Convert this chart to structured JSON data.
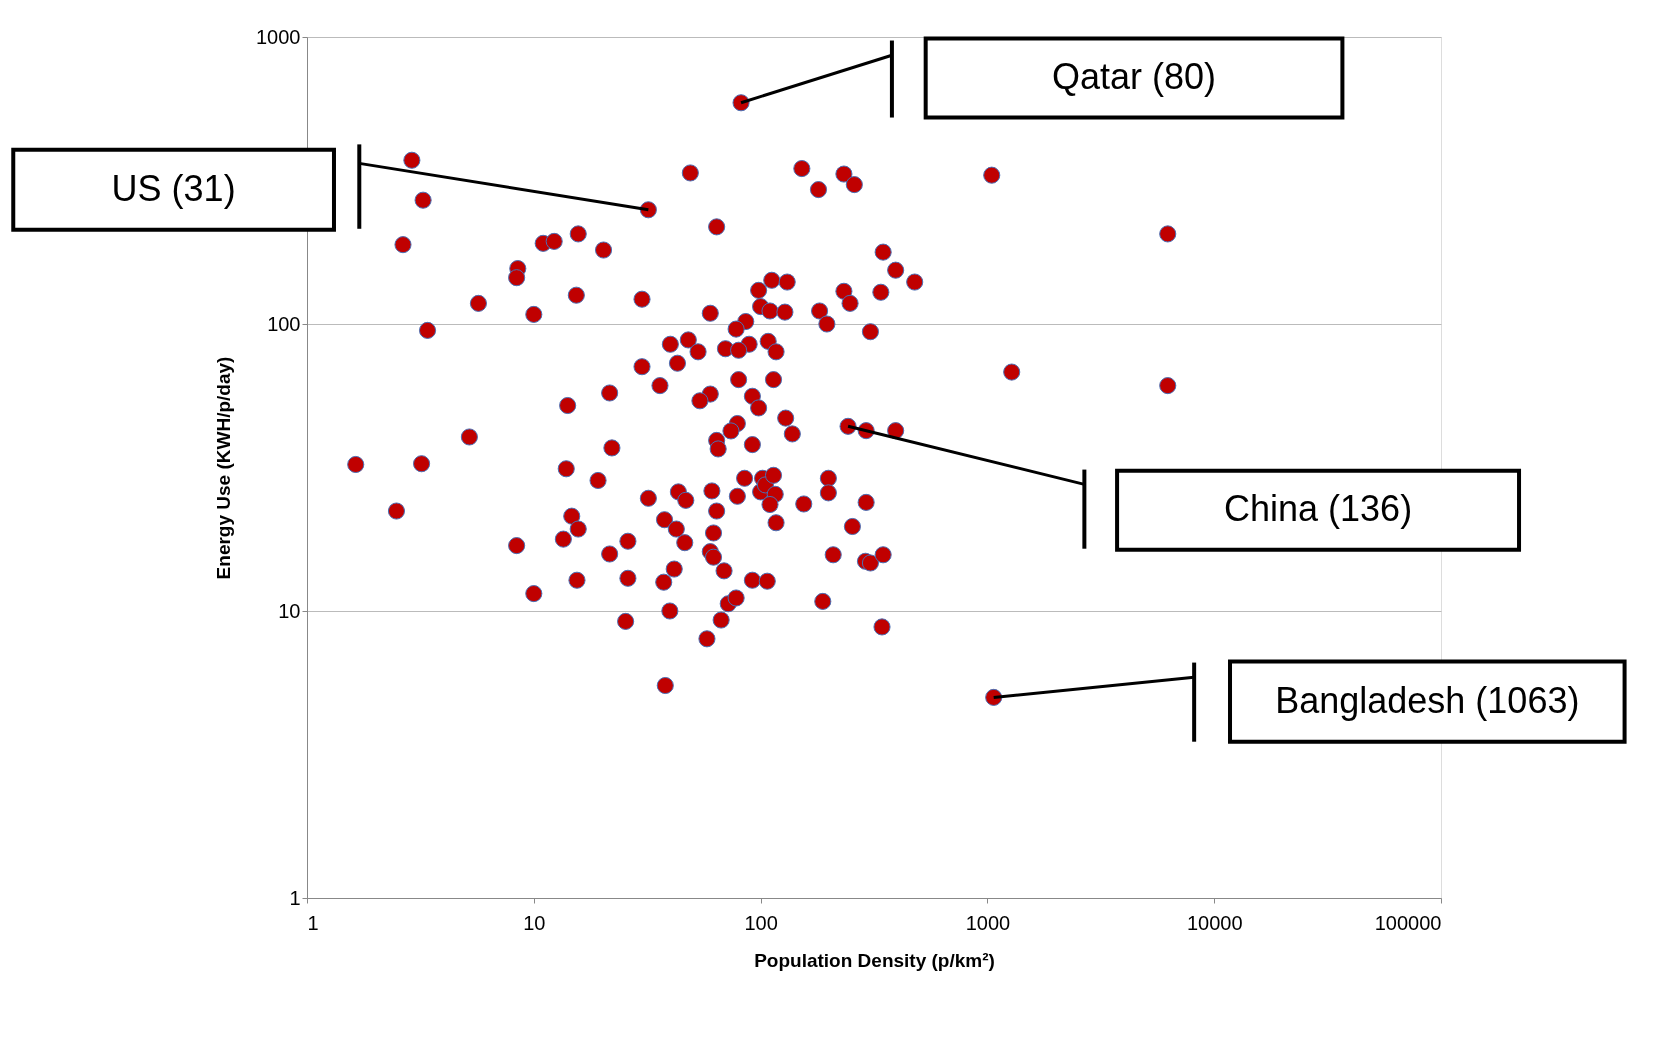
{
  "chart_data": {
    "type": "scatter",
    "xlabel": "Population Density (p/km²)",
    "ylabel": "Energy Use (KWH/p/day)",
    "log": "xy",
    "grid": "y",
    "marker": "circle",
    "xlim": [
      1,
      100000
    ],
    "ylim": [
      1,
      1000
    ],
    "xticks": [
      1,
      10,
      100,
      1000,
      10000,
      100000
    ],
    "yticks": [
      1,
      10,
      100,
      1000
    ],
    "series": [
      {
        "color": "#c00000",
        "x": [
          82,
          2.9,
          3.25,
          2.65,
          32,
          49,
          152,
          233,
          259,
          180,
          1045,
          6240,
          64,
          11,
          12.3,
          15.7,
          20.3,
          8.5,
          8.4,
          5.7,
          10,
          15.4,
          30,
          3.4,
          347,
          394,
          478,
          233,
          248,
          339,
          182,
          196,
          305,
          1280,
          6240,
          292,
          394,
          243,
          60,
          86,
          112,
          131,
          98,
          100,
          110,
          128,
          78,
          89,
          108,
          70,
          80,
          117,
          48,
          40,
          53,
          43,
          30,
          36,
          114,
          80,
          92,
          60,
          54,
          98,
          14.1,
          21.6,
          5.2,
          129,
          138,
          79,
          74,
          64,
          65,
          92,
          1.64,
          3.2,
          13.9,
          22.1,
          19.2,
          2.48,
          8.4,
          10,
          13.5,
          14.7,
          15.7,
          15.5,
          21.6,
          26,
          26,
          25.4,
          32,
          37.7,
          37.4,
          39.8,
          38,
          42.5,
          41.6,
          43.4,
          46.8,
          46.3,
          61,
          64,
          62,
          60,
          62,
          69,
          79,
          85,
          67,
          72,
          78,
          58,
          92,
          107,
          100,
          102,
          105,
          114,
          116,
          110,
          117,
          155,
          199,
          199,
          254,
          209,
          188,
          292,
          290,
          305,
          347,
          343,
          1066
        ],
        "values": [
          590,
          372,
          270,
          189,
          250,
          336,
          348,
          333,
          306,
          294,
          330,
          206,
          218,
          191,
          194,
          206,
          181,
          156,
          145,
          118,
          108,
          126,
          122,
          95,
          178,
          154,
          140,
          130,
          118,
          129,
          111,
          100,
          94,
          68,
          61,
          42.5,
          42.5,
          44,
          109,
          102,
          142,
          140,
          131,
          115,
          111,
          110,
          96,
          85,
          87,
          82,
          81,
          80,
          88,
          85,
          80,
          73,
          71,
          61,
          64,
          64,
          56,
          57,
          54,
          51,
          52,
          57.5,
          40.4,
          47,
          41.4,
          45,
          42.4,
          39.3,
          36.7,
          38,
          32.4,
          32.6,
          31.3,
          37,
          28.5,
          22.3,
          16.9,
          11.5,
          17.8,
          21.4,
          19.3,
          12.8,
          15.8,
          17.5,
          13,
          9.2,
          24.7,
          20.8,
          12.6,
          10,
          5.5,
          19.3,
          14,
          26,
          24.3,
          17.3,
          26.2,
          22.3,
          18.7,
          16.1,
          15.4,
          13.8,
          25.1,
          29,
          9.3,
          10.6,
          11.1,
          8,
          12.8,
          12.7,
          26,
          29,
          27.5,
          29.7,
          25.5,
          23.5,
          20.3,
          23.6,
          29,
          25.8,
          19.7,
          15.7,
          10.8,
          23.9,
          14.9,
          14.7,
          15.7,
          8.8,
          5
        ]
      }
    ],
    "annotations": [
      "Qatar (80)",
      "US (31)",
      "China (136)",
      "Bangladesh (1063)"
    ]
  }
}
